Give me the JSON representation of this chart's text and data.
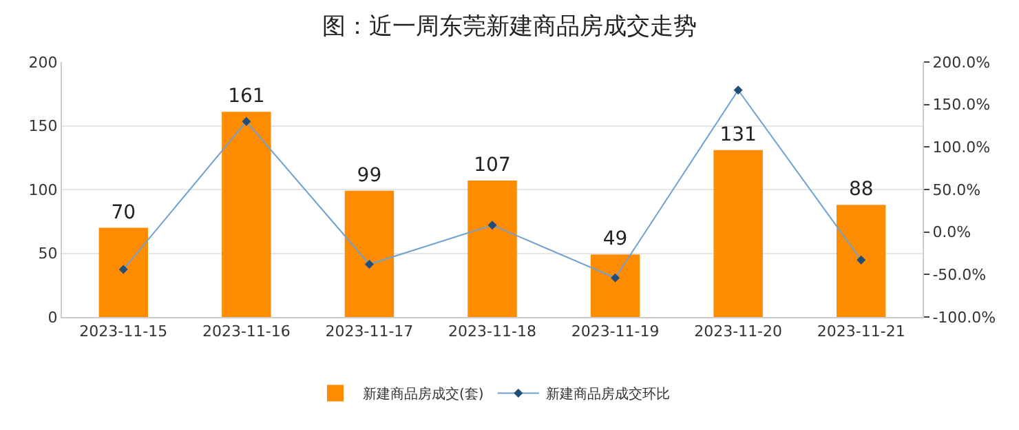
{
  "chart_data": {
    "type": "bar",
    "title": "图：近一周东莞新建商品房成交走势",
    "categories": [
      "2023-11-15",
      "2023-11-16",
      "2023-11-17",
      "2023-11-18",
      "2023-11-19",
      "2023-11-20",
      "2023-11-21"
    ],
    "series": [
      {
        "name": "新建商品房成交(套)",
        "color": "#ff8c00",
        "values": [
          70,
          161,
          99,
          107,
          49,
          131,
          88
        ],
        "value_labels": [
          "70",
          "161",
          "99",
          "107",
          "49",
          "131",
          "88"
        ]
      },
      {
        "name": "新建商品房成交环比",
        "type": "line",
        "axis": "y2",
        "color": "#6fa0d0",
        "marker": "diamond",
        "values": [
          -44,
          130,
          -38,
          8,
          -54,
          167,
          -33
        ]
      }
    ],
    "ylim": [
      0,
      200
    ],
    "yticks": [
      0,
      50,
      100,
      150,
      200
    ],
    "y2lim": [
      -100,
      200
    ],
    "y2ticks": [
      {
        "value": -100,
        "label": "-100.0%"
      },
      {
        "value": -50,
        "label": "-50.0%"
      },
      {
        "value": 0,
        "label": "0.0%"
      },
      {
        "value": 50,
        "label": "50.0%"
      },
      {
        "value": 100,
        "label": "100.0%"
      },
      {
        "value": 150,
        "label": "150.0%"
      },
      {
        "value": 200,
        "label": "200.0%"
      }
    ],
    "grid": "y",
    "legend": "bottom"
  }
}
